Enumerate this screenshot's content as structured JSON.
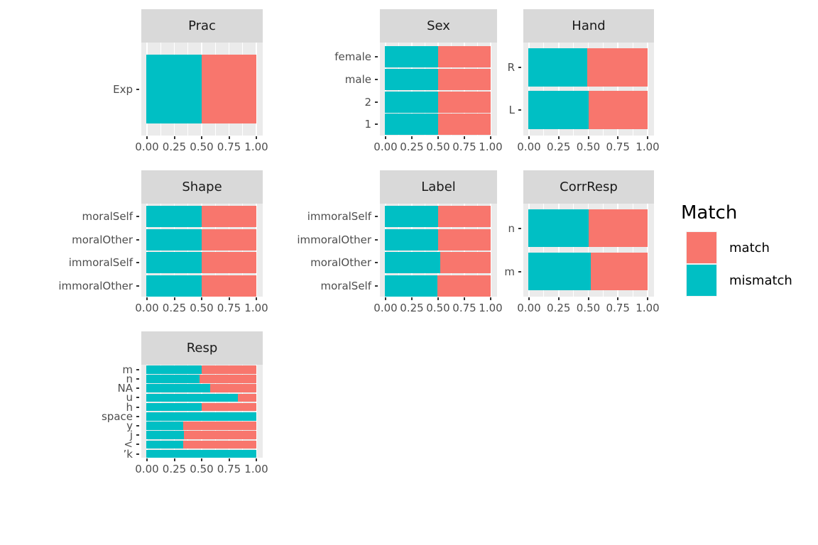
{
  "colors": {
    "match": "#F8766D",
    "mismatch": "#00BFC4",
    "panel_bg": "#EBEBEB",
    "strip_bg": "#D9D9D9",
    "grid": "#FFFFFF",
    "axis_text": "#4D4D4D",
    "tick_mark": "#333333",
    "strip_text": "#1A1A1A"
  },
  "legend": {
    "title": "Match",
    "entries": [
      {
        "label": "match",
        "color": "#F8766D"
      },
      {
        "label": "mismatch",
        "color": "#00BFC4"
      }
    ]
  },
  "axis": {
    "x_ticks": [
      "0.00",
      "0.25",
      "0.50",
      "0.75",
      "1.00"
    ],
    "x_tick_values": [
      0,
      0.25,
      0.5,
      0.75,
      1
    ]
  },
  "chart_data": {
    "type": "bar",
    "orientation": "horizontal",
    "stacked": true,
    "normalized": true,
    "x_range": [
      0,
      1
    ],
    "grid": true,
    "legend_title": "Match",
    "legend_position": "right",
    "series_names": [
      "mismatch",
      "match"
    ],
    "facets": [
      {
        "title": "Prac",
        "categories": [
          "Exp"
        ],
        "mismatch": [
          0.5
        ],
        "match": [
          0.5
        ]
      },
      {
        "title": "Sex",
        "categories": [
          "female",
          "male",
          "2",
          "1"
        ],
        "mismatch": [
          0.5,
          0.5,
          0.5,
          0.5
        ],
        "match": [
          0.5,
          0.5,
          0.5,
          0.5
        ]
      },
      {
        "title": "Hand",
        "categories": [
          "R",
          "L"
        ],
        "mismatch": [
          0.49,
          0.5
        ],
        "match": [
          0.51,
          0.5
        ]
      },
      {
        "title": "Shape",
        "categories": [
          "moralSelf",
          "moralOther",
          "immoralSelf",
          "immoralOther"
        ],
        "mismatch": [
          0.5,
          0.5,
          0.5,
          0.5
        ],
        "match": [
          0.5,
          0.5,
          0.5,
          0.5
        ]
      },
      {
        "title": "Label",
        "categories": [
          "immoralSelf",
          "immoralOther",
          "moralOther",
          "moralSelf"
        ],
        "mismatch": [
          0.5,
          0.5,
          0.52,
          0.49
        ],
        "match": [
          0.5,
          0.5,
          0.48,
          0.51
        ]
      },
      {
        "title": "CorrResp",
        "categories": [
          "n",
          "m"
        ],
        "mismatch": [
          0.5,
          0.52
        ],
        "match": [
          0.5,
          0.48
        ]
      },
      {
        "title": "Resp",
        "categories": [
          "m",
          "n",
          "NA",
          "u",
          "h",
          "space",
          "y",
          "j",
          "<",
          "’k"
        ],
        "mismatch": [
          0.5,
          0.48,
          0.58,
          0.83,
          0.5,
          1.0,
          0.33,
          0.34,
          0.33,
          1.0
        ],
        "match": [
          0.5,
          0.52,
          0.42,
          0.17,
          0.5,
          0.0,
          0.67,
          0.66,
          0.67,
          0.0
        ]
      }
    ]
  }
}
